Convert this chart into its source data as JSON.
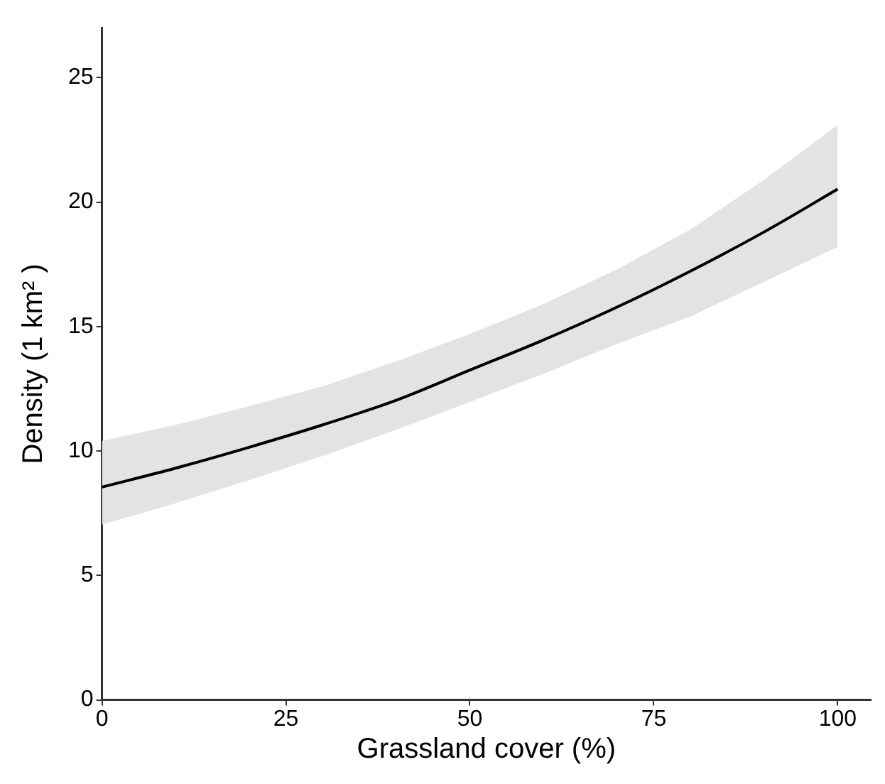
{
  "chart_data": {
    "type": "line",
    "xlabel": "Grassland cover (%)",
    "ylabel": "Density (1 km² )",
    "x": [
      0,
      10,
      20,
      30,
      40,
      50,
      60,
      70,
      80,
      90,
      100
    ],
    "series": [
      {
        "color": "#000000",
        "values": [
          8.55,
          9.31,
          10.15,
          11.05,
          12.04,
          13.25,
          14.46,
          15.78,
          17.23,
          18.8,
          20.52
        ],
        "lower": [
          7.04,
          7.9,
          8.83,
          9.8,
          10.85,
          11.97,
          13.1,
          14.3,
          15.4,
          16.8,
          18.2
        ],
        "upper": [
          10.4,
          11.05,
          11.8,
          12.6,
          13.6,
          14.7,
          15.9,
          17.3,
          18.9,
          20.9,
          23.1
        ]
      }
    ],
    "xlim": [
      0,
      104.5
    ],
    "xticks": [
      0,
      25,
      50,
      75,
      100
    ],
    "ylim": [
      0,
      27
    ],
    "yticks": [
      0,
      5,
      10,
      15,
      20,
      25
    ],
    "grid": false,
    "legend": false,
    "marker": "none",
    "line_style": "solid"
  }
}
